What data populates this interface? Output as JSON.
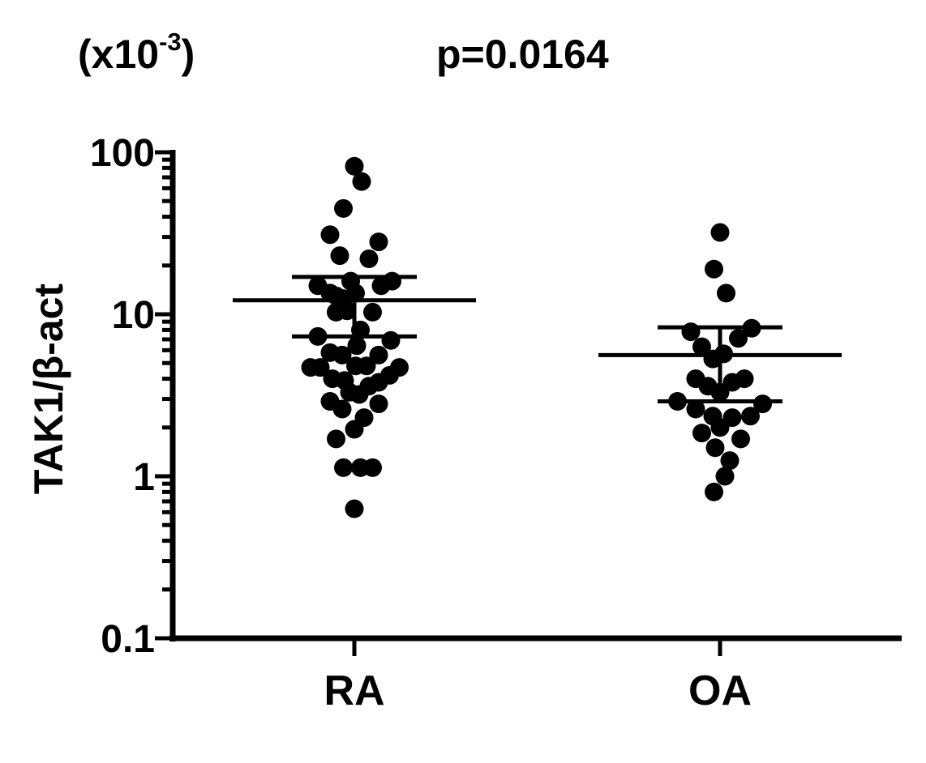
{
  "chart_data": {
    "type": "scatter",
    "multiplier_prefix": "(x10",
    "multiplier_exponent": "-3",
    "multiplier_suffix": ")",
    "annotation": "p=0.0164",
    "ylabel": "TAK1/β-act",
    "xlabel": "",
    "yscale": "log",
    "ylim": [
      0.1,
      100
    ],
    "yticks": [
      0.1,
      1,
      10,
      100
    ],
    "ytick_labels": [
      "0.1",
      "1",
      "10",
      "100"
    ],
    "categories": [
      "RA",
      "OA"
    ],
    "grid": false,
    "marker_color": "#000000",
    "series": [
      {
        "category": "RA",
        "mean": 12.2,
        "error_upper": 17.0,
        "error_lower": 7.3,
        "points": [
          {
            "offset": 0.0,
            "y": 82
          },
          {
            "offset": 0.06,
            "y": 66
          },
          {
            "offset": -0.09,
            "y": 45
          },
          {
            "offset": -0.2,
            "y": 31
          },
          {
            "offset": 0.2,
            "y": 28
          },
          {
            "offset": -0.12,
            "y": 23
          },
          {
            "offset": 0.12,
            "y": 22
          },
          {
            "offset": -0.3,
            "y": 15
          },
          {
            "offset": 0.22,
            "y": 15
          },
          {
            "offset": 0.31,
            "y": 16
          },
          {
            "offset": -0.03,
            "y": 16
          },
          {
            "offset": -0.2,
            "y": 13.5
          },
          {
            "offset": -0.15,
            "y": 13
          },
          {
            "offset": -0.09,
            "y": 12.5
          },
          {
            "offset": 0.01,
            "y": 13.5
          },
          {
            "offset": -0.15,
            "y": 10.3
          },
          {
            "offset": -0.06,
            "y": 10.5
          },
          {
            "offset": 0.15,
            "y": 10.3
          },
          {
            "offset": 0.05,
            "y": 8
          },
          {
            "offset": -0.3,
            "y": 7.3
          },
          {
            "offset": 0.3,
            "y": 6.9
          },
          {
            "offset": -0.2,
            "y": 5.8
          },
          {
            "offset": -0.1,
            "y": 5.6
          },
          {
            "offset": 0.02,
            "y": 6.4
          },
          {
            "offset": 0.2,
            "y": 5.6
          },
          {
            "offset": -0.36,
            "y": 4.7
          },
          {
            "offset": -0.28,
            "y": 4.7
          },
          {
            "offset": 0.01,
            "y": 4.8
          },
          {
            "offset": 0.1,
            "y": 4.8
          },
          {
            "offset": 0.37,
            "y": 4.7
          },
          {
            "offset": 0.29,
            "y": 4.2
          },
          {
            "offset": -0.18,
            "y": 4.0
          },
          {
            "offset": -0.08,
            "y": 3.9
          },
          {
            "offset": 0.12,
            "y": 3.6
          },
          {
            "offset": 0.2,
            "y": 3.8
          },
          {
            "offset": -0.04,
            "y": 3.3
          },
          {
            "offset": 0.04,
            "y": 3.2
          },
          {
            "offset": -0.2,
            "y": 2.9
          },
          {
            "offset": -0.1,
            "y": 2.6
          },
          {
            "offset": 0.2,
            "y": 2.8
          },
          {
            "offset": 0.08,
            "y": 2.3
          },
          {
            "offset": 0.0,
            "y": 1.95
          },
          {
            "offset": -0.15,
            "y": 1.7
          },
          {
            "offset": -0.09,
            "y": 1.13
          },
          {
            "offset": 0.05,
            "y": 1.13
          },
          {
            "offset": 0.15,
            "y": 1.13
          },
          {
            "offset": 0.0,
            "y": 0.63
          }
        ]
      },
      {
        "category": "OA",
        "mean": 5.6,
        "error_upper": 8.3,
        "error_lower": 2.9,
        "points": [
          {
            "offset": 0.0,
            "y": 32
          },
          {
            "offset": -0.05,
            "y": 19
          },
          {
            "offset": 0.05,
            "y": 13.5
          },
          {
            "offset": 0.26,
            "y": 8.2
          },
          {
            "offset": -0.24,
            "y": 7.8
          },
          {
            "offset": 0.15,
            "y": 7.1
          },
          {
            "offset": -0.15,
            "y": 6.3
          },
          {
            "offset": 0.03,
            "y": 5.7
          },
          {
            "offset": -0.06,
            "y": 5.3
          },
          {
            "offset": -0.2,
            "y": 4.0
          },
          {
            "offset": -0.1,
            "y": 3.6
          },
          {
            "offset": 0.1,
            "y": 3.8
          },
          {
            "offset": 0.2,
            "y": 4.0
          },
          {
            "offset": 0.0,
            "y": 3.3
          },
          {
            "offset": -0.35,
            "y": 2.9
          },
          {
            "offset": -0.2,
            "y": 2.6
          },
          {
            "offset": 0.35,
            "y": 2.8
          },
          {
            "offset": -0.06,
            "y": 2.35
          },
          {
            "offset": 0.1,
            "y": 2.3
          },
          {
            "offset": 0.25,
            "y": 2.35
          },
          {
            "offset": 0.0,
            "y": 2.0
          },
          {
            "offset": -0.15,
            "y": 1.85
          },
          {
            "offset": 0.17,
            "y": 1.7
          },
          {
            "offset": -0.04,
            "y": 1.5
          },
          {
            "offset": 0.08,
            "y": 1.25
          },
          {
            "offset": 0.04,
            "y": 1.0
          },
          {
            "offset": -0.05,
            "y": 0.8
          }
        ]
      }
    ]
  }
}
